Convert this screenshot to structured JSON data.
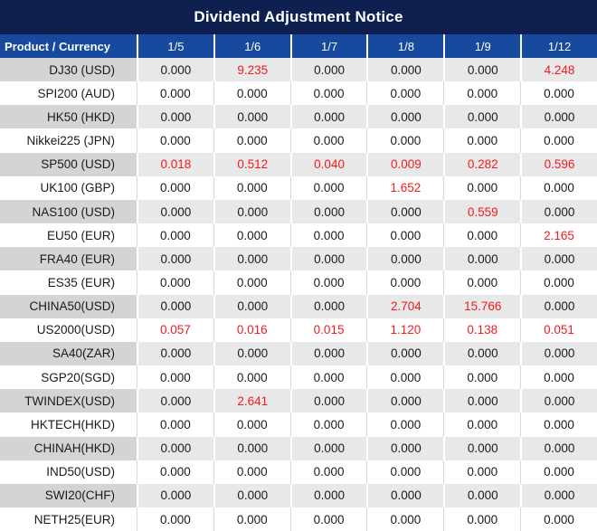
{
  "colors": {
    "title_bg": "#0d2050",
    "header_bg": "#17499e",
    "header_text": "#ffffff",
    "shaded_product_bg": "#d4d4d4",
    "shaded_value_bg": "#e8e8e8",
    "red_value": "#ee1c1d",
    "text": "#1a1a1a"
  },
  "title": "Dividend Adjustment Notice",
  "table": {
    "product_header": "Product / Currency",
    "date_columns": [
      "1/5",
      "1/6",
      "1/7",
      "1/8",
      "1/9",
      "1/12"
    ],
    "rows": [
      {
        "product": "DJ30 (USD)",
        "values": [
          "0.000",
          "9.235",
          "0.000",
          "0.000",
          "0.000",
          "4.248"
        ],
        "red": [
          1,
          5
        ]
      },
      {
        "product": "SPI200 (AUD)",
        "values": [
          "0.000",
          "0.000",
          "0.000",
          "0.000",
          "0.000",
          "0.000"
        ],
        "red": []
      },
      {
        "product": "HK50 (HKD)",
        "values": [
          "0.000",
          "0.000",
          "0.000",
          "0.000",
          "0.000",
          "0.000"
        ],
        "red": []
      },
      {
        "product": "Nikkei225 (JPN)",
        "values": [
          "0.000",
          "0.000",
          "0.000",
          "0.000",
          "0.000",
          "0.000"
        ],
        "red": []
      },
      {
        "product": "SP500 (USD)",
        "values": [
          "0.018",
          "0.512",
          "0.040",
          "0.009",
          "0.282",
          "0.596"
        ],
        "red": [
          0,
          1,
          2,
          3,
          4,
          5
        ]
      },
      {
        "product": "UK100 (GBP)",
        "values": [
          "0.000",
          "0.000",
          "0.000",
          "1.652",
          "0.000",
          "0.000"
        ],
        "red": [
          3
        ]
      },
      {
        "product": "NAS100 (USD)",
        "values": [
          "0.000",
          "0.000",
          "0.000",
          "0.000",
          "0.559",
          "0.000"
        ],
        "red": [
          4
        ]
      },
      {
        "product": "EU50 (EUR)",
        "values": [
          "0.000",
          "0.000",
          "0.000",
          "0.000",
          "0.000",
          "2.165"
        ],
        "red": [
          5
        ]
      },
      {
        "product": "FRA40 (EUR)",
        "values": [
          "0.000",
          "0.000",
          "0.000",
          "0.000",
          "0.000",
          "0.000"
        ],
        "red": []
      },
      {
        "product": "ES35 (EUR)",
        "values": [
          "0.000",
          "0.000",
          "0.000",
          "0.000",
          "0.000",
          "0.000"
        ],
        "red": []
      },
      {
        "product": "CHINA50(USD)",
        "values": [
          "0.000",
          "0.000",
          "0.000",
          "2.704",
          "15.766",
          "0.000"
        ],
        "red": [
          3,
          4
        ]
      },
      {
        "product": "US2000(USD)",
        "values": [
          "0.057",
          "0.016",
          "0.015",
          "1.120",
          "0.138",
          "0.051"
        ],
        "red": [
          0,
          1,
          2,
          3,
          4,
          5
        ]
      },
      {
        "product": "SA40(ZAR)",
        "values": [
          "0.000",
          "0.000",
          "0.000",
          "0.000",
          "0.000",
          "0.000"
        ],
        "red": []
      },
      {
        "product": "SGP20(SGD)",
        "values": [
          "0.000",
          "0.000",
          "0.000",
          "0.000",
          "0.000",
          "0.000"
        ],
        "red": []
      },
      {
        "product": "TWINDEX(USD)",
        "values": [
          "0.000",
          "2.641",
          "0.000",
          "0.000",
          "0.000",
          "0.000"
        ],
        "red": [
          1
        ]
      },
      {
        "product": "HKTECH(HKD)",
        "values": [
          "0.000",
          "0.000",
          "0.000",
          "0.000",
          "0.000",
          "0.000"
        ],
        "red": []
      },
      {
        "product": "CHINAH(HKD)",
        "values": [
          "0.000",
          "0.000",
          "0.000",
          "0.000",
          "0.000",
          "0.000"
        ],
        "red": []
      },
      {
        "product": "IND50(USD)",
        "values": [
          "0.000",
          "0.000",
          "0.000",
          "0.000",
          "0.000",
          "0.000"
        ],
        "red": []
      },
      {
        "product": "SWI20(CHF)",
        "values": [
          "0.000",
          "0.000",
          "0.000",
          "0.000",
          "0.000",
          "0.000"
        ],
        "red": []
      },
      {
        "product": "NETH25(EUR)",
        "values": [
          "0.000",
          "0.000",
          "0.000",
          "0.000",
          "0.000",
          "0.000"
        ],
        "red": []
      }
    ]
  }
}
